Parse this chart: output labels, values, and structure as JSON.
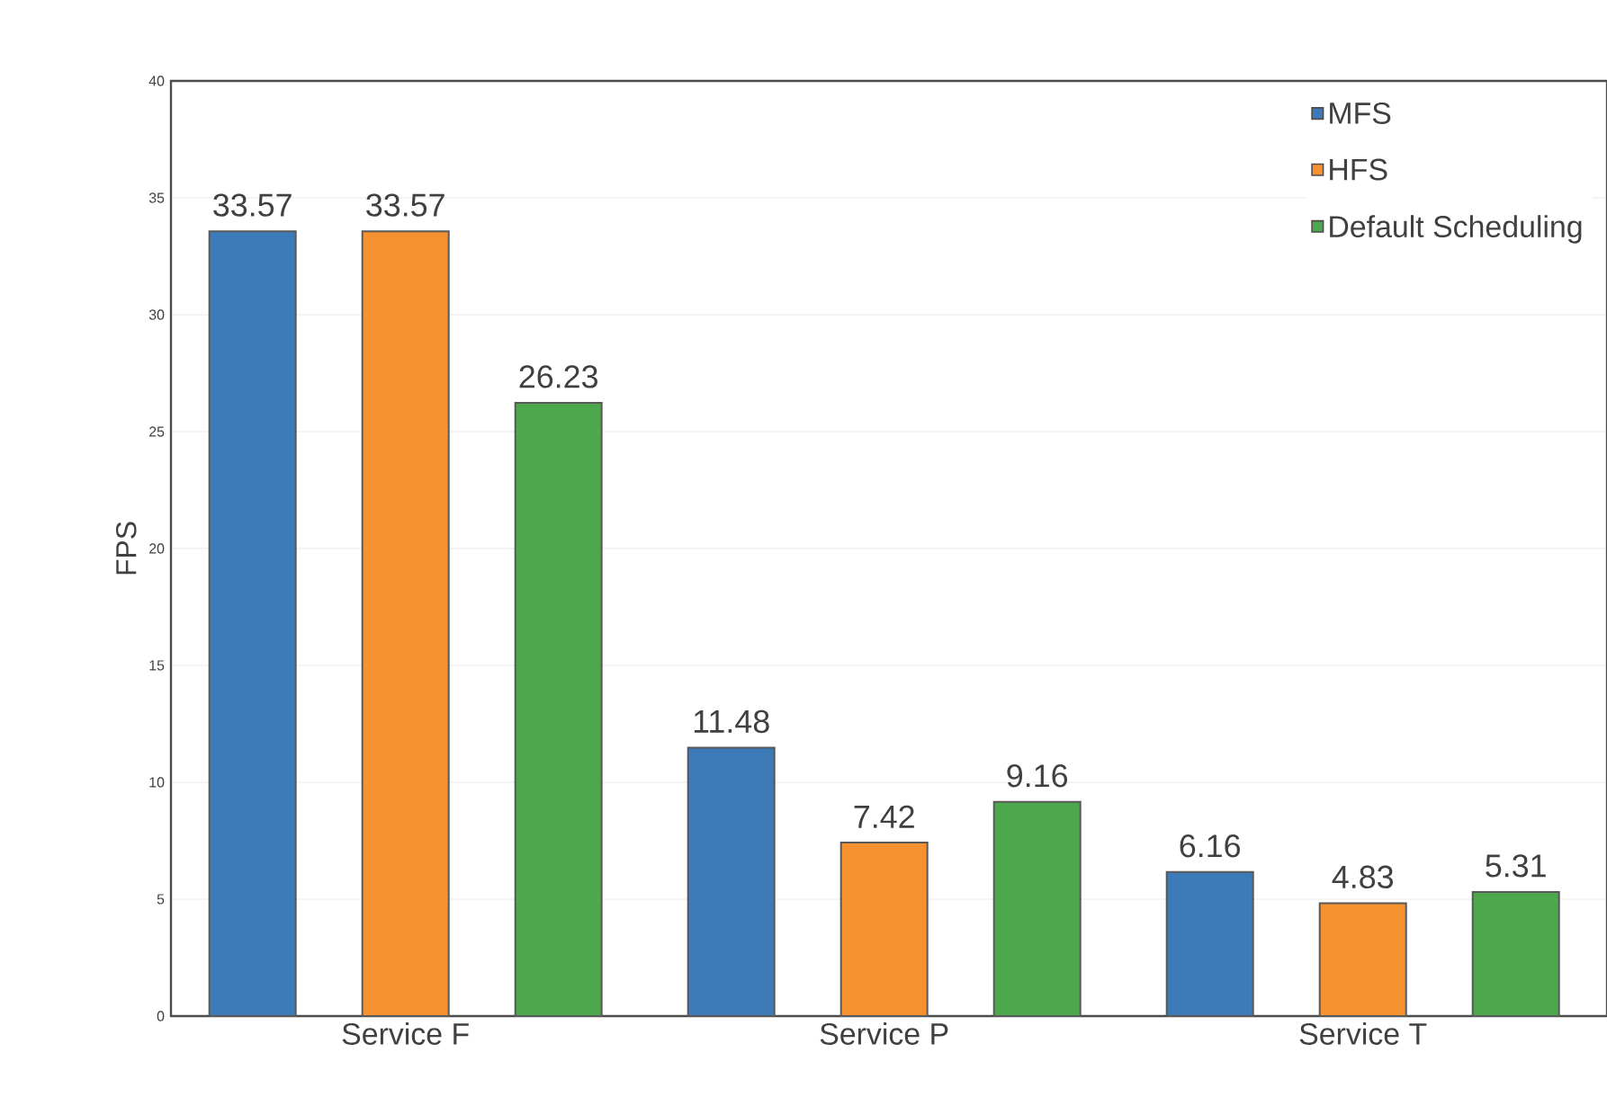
{
  "chart_data": {
    "type": "bar",
    "ylabel": "FPS",
    "categories": [
      "Service F",
      "Service P",
      "Service T"
    ],
    "series": [
      {
        "name": "MFS",
        "color": "#3d7ab8",
        "values": [
          33.57,
          11.48,
          6.16
        ]
      },
      {
        "name": "HFS",
        "color": "#f5922f",
        "values": [
          33.57,
          7.42,
          4.83
        ]
      },
      {
        "name": "Default Scheduling",
        "color": "#4da74d",
        "values": [
          26.23,
          9.16,
          5.31
        ]
      }
    ],
    "ylim": [
      0,
      40
    ],
    "yticks": [
      0,
      5,
      10,
      15,
      20,
      25,
      30,
      35,
      40
    ],
    "grid": "y",
    "legend": "top right",
    "data_labels": true
  }
}
